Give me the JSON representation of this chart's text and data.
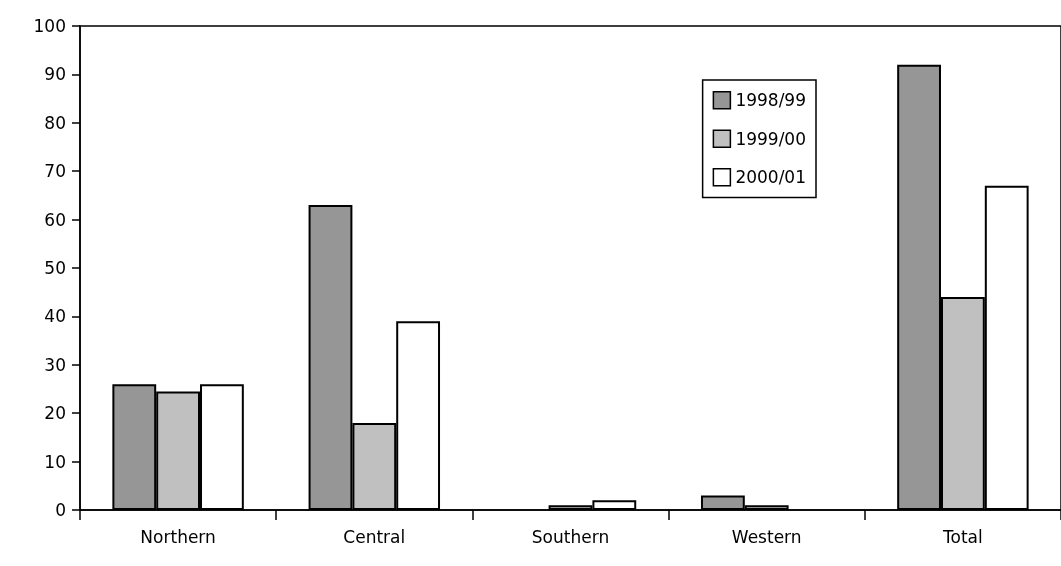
{
  "chart_data": {
    "type": "bar",
    "categories": [
      "Northern",
      "Central",
      "Southern",
      "Western",
      "Total"
    ],
    "series": [
      {
        "name": "1998/99",
        "color": "#969696",
        "values": [
          26,
          63,
          0,
          3,
          92
        ]
      },
      {
        "name": "1999/00",
        "color": "#c0c0c0",
        "values": [
          24.5,
          18,
          1,
          1,
          44
        ]
      },
      {
        "name": "2000/01",
        "color": "#ffffff",
        "values": [
          26,
          39,
          2,
          0,
          67
        ]
      }
    ],
    "ylim": [
      0,
      100
    ],
    "yticks": [
      0,
      10,
      20,
      30,
      40,
      50,
      60,
      70,
      80,
      90,
      100
    ],
    "grid": false,
    "legend": "top right"
  }
}
